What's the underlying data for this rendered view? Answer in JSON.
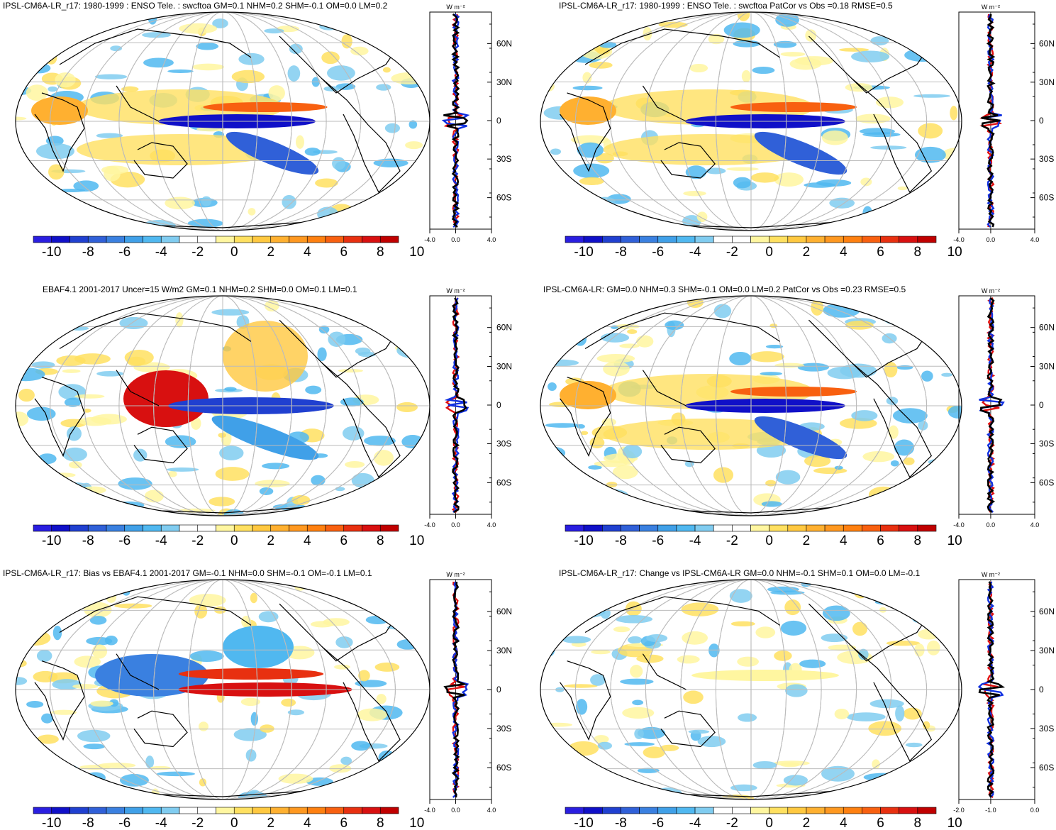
{
  "panels": [
    {
      "title": "IPSL-CM6A-LR_r17: 1980-1999 : ENSO Tele. : swcftoa GM=0.1 NHM=0.2 SHM=-0.1 OM=0.0 LM=0.2",
      "profile_units": "W m-2",
      "profile_xticks": [
        "-4.0",
        "0.0",
        "4.0"
      ]
    },
    {
      "title": "IPSL-CM6A-LR_r17: 1980-1999 : ENSO Tele. : swcftoa PatCor vs Obs =0.18 RMSE=0.5",
      "profile_units": "W m-2",
      "profile_xticks": [
        "-4.0",
        "0.0",
        "4.0"
      ]
    },
    {
      "title": "EBAF4.1 2001-2017 Uncer=15 W/m2 GM=0.1 NHM=0.2 SHM=0.0 OM=0.1 LM=0.1",
      "profile_units": "W m-2",
      "profile_xticks": [
        "-4.0",
        "0.0",
        "4.0"
      ]
    },
    {
      "title": "IPSL-CM6A-LR: GM=0.0 NHM=0.3 SHM=-0.1 OM=0.0 LM=0.2 PatCor vs Obs =0.23 RMSE=0.5",
      "profile_units": "W m-2",
      "profile_xticks": [
        "-4.0",
        "0.0",
        "4.0"
      ]
    },
    {
      "title": "IPSL-CM6A-LR_r17: Bias vs EBAF4.1 2001-2017 GM=-0.1 NHM=0.0 SHM=-0.1 OM=-0.1 LM=0.1",
      "profile_units": "W m-2",
      "profile_xticks": [
        "-4.0",
        "0.0",
        "4.0"
      ]
    },
    {
      "title": "IPSL-CM6A-LR_r17: Change vs IPSL-CM6A-LR GM=0.0 NHM=-0.1 SHM=0.1 OM=0.0 LM=-0.1",
      "profile_units": "W m-2",
      "profile_xticks": [
        "-2.0",
        "-1.0",
        "0.0"
      ]
    }
  ],
  "lat_labels": [
    "60N",
    "30N",
    "0",
    "30S",
    "60S"
  ],
  "colorbar": {
    "labels": [
      "-10",
      "-8",
      "-6",
      "-4",
      "-2",
      "0",
      "2",
      "4",
      "6",
      "8",
      "10"
    ],
    "colors": [
      "#2a1ee0",
      "#1010c8",
      "#2040d0",
      "#3060d8",
      "#3a80e0",
      "#40a0e8",
      "#50b8f0",
      "#80ccf0",
      "#ffffff",
      "#ffffff",
      "#fff6a0",
      "#ffe060",
      "#ffc840",
      "#ffb030",
      "#ff9820",
      "#ff8010",
      "#f86010",
      "#e83010",
      "#d81010",
      "#c00000"
    ]
  },
  "chart_data": {
    "type": "heatmap",
    "description_series": [
      "model (black)",
      "land (red)",
      "ocean (blue)"
    ],
    "profile_lat_ticks": [
      "60N",
      "30N",
      "0",
      "30S",
      "60S"
    ]
  }
}
